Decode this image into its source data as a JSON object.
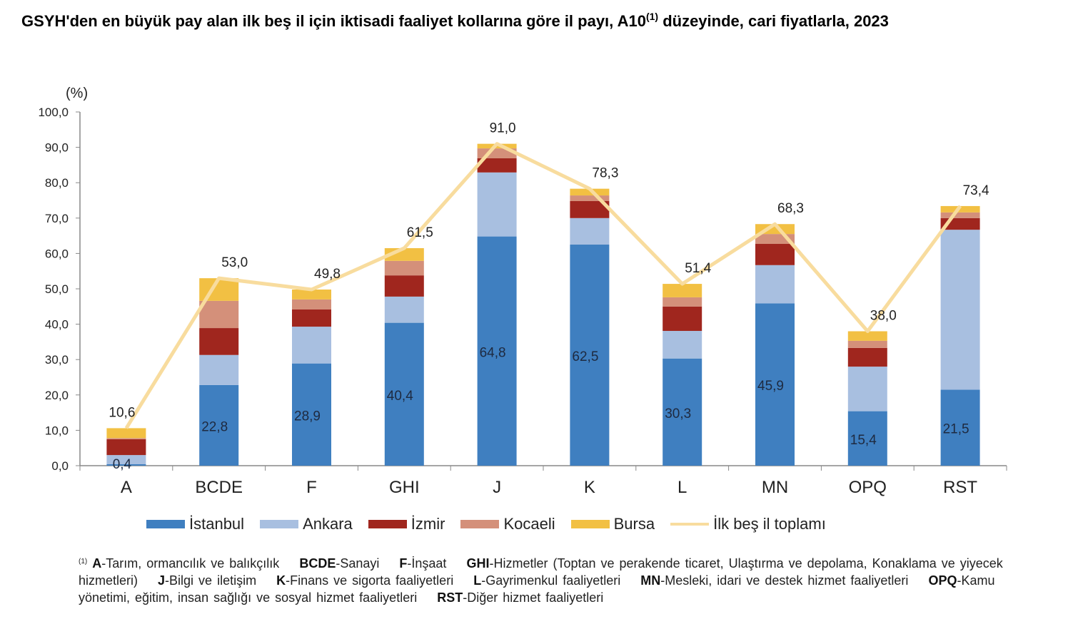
{
  "title": {
    "text": "GSYH'den en büyük pay alan ilk beş il için iktisadi faaliyet kollarına göre il payı, A10",
    "sup": "(1)",
    "rest": " düzeyinde, cari fiyatlarla, 2023"
  },
  "chart_data": {
    "type": "bar",
    "stacked": true,
    "ylabel": "(%)",
    "ylim": [
      0,
      100
    ],
    "yticks": [
      "0,0",
      "10,0",
      "20,0",
      "30,0",
      "40,0",
      "50,0",
      "60,0",
      "70,0",
      "80,0",
      "90,0",
      "100,0"
    ],
    "categories": [
      "A",
      "BCDE",
      "F",
      "GHI",
      "J",
      "K",
      "L",
      "MN",
      "OPQ",
      "RST"
    ],
    "series": [
      {
        "name": "İstanbul",
        "color": "#3f7fc0",
        "values": [
          0.4,
          22.8,
          28.9,
          40.4,
          64.8,
          62.5,
          30.3,
          45.9,
          15.4,
          21.5
        ]
      },
      {
        "name": "Ankara",
        "color": "#a8bfe0",
        "values": [
          2.6,
          8.5,
          10.4,
          7.4,
          18.1,
          7.5,
          7.8,
          10.8,
          12.6,
          45.2
        ]
      },
      {
        "name": "İzmir",
        "color": "#a0261e",
        "values": [
          4.5,
          7.6,
          4.9,
          6.0,
          4.0,
          4.8,
          6.9,
          6.0,
          5.3,
          3.3
        ]
      },
      {
        "name": "Kocaeli",
        "color": "#d4907a",
        "values": [
          0.3,
          7.7,
          2.8,
          4.1,
          2.8,
          1.6,
          2.6,
          2.8,
          2.0,
          1.6
        ]
      },
      {
        "name": "Bursa",
        "color": "#f2c043",
        "values": [
          2.8,
          6.4,
          2.8,
          3.6,
          1.3,
          1.9,
          3.8,
          2.8,
          2.7,
          1.8
        ]
      }
    ],
    "line": {
      "name": "İlk beş il toplamı",
      "color": "#f8dc9e",
      "values": [
        10.6,
        53.0,
        49.8,
        61.5,
        91.0,
        78.3,
        51.4,
        68.3,
        38.0,
        73.4
      ]
    },
    "istanbul_labels": [
      "0,4",
      "22,8",
      "28,9",
      "40,4",
      "64,8",
      "62,5",
      "30,3",
      "45,9",
      "15,4",
      "21,5"
    ],
    "total_labels": [
      "10,6",
      "53,0",
      "49,8",
      "61,5",
      "91,0",
      "78,3",
      "51,4",
      "68,3",
      "38,0",
      "73,4"
    ],
    "legend": "bottom"
  },
  "footnote": {
    "sup": "(1)",
    "items": [
      {
        "code": "A",
        "desc": "-Tarım, ormancılık ve balıkçılık"
      },
      {
        "code": "BCDE",
        "desc": "-Sanayi"
      },
      {
        "code": "F",
        "desc": "-İnşaat"
      },
      {
        "code": "GHI",
        "desc": "-Hizmetler (Toptan ve perakende ticaret, Ulaştırma ve depolama, Konaklama ve yiyecek hizmetleri)"
      },
      {
        "code": "J",
        "desc": "-Bilgi ve iletişim"
      },
      {
        "code": "K",
        "desc": "-Finans ve sigorta faaliyetleri"
      },
      {
        "code": "L",
        "desc": "-Gayrimenkul faaliyetleri"
      },
      {
        "code": "MN",
        "desc": "-Mesleki, idari ve destek hizmet faaliyetleri"
      },
      {
        "code": "OPQ",
        "desc": "-Kamu yönetimi, eğitim, insan sağlığı ve sosyal hizmet faaliyetleri"
      },
      {
        "code": "RST",
        "desc": "-Diğer hizmet faaliyetleri"
      }
    ]
  }
}
